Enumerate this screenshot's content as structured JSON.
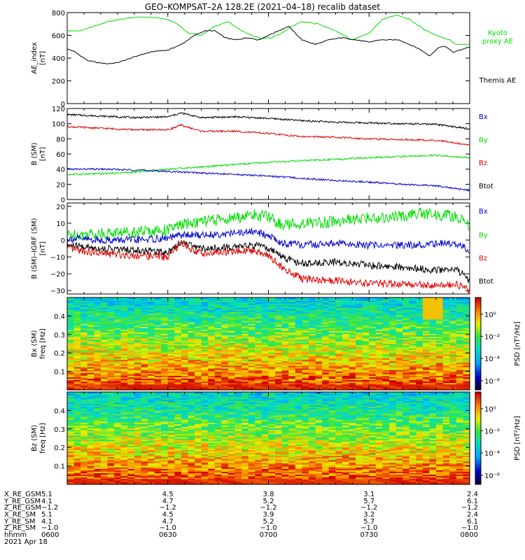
{
  "title": "GEO–KOMPSAT–2A 128.2E (2021–04–18) recalib dataset",
  "colors": {
    "black": "#000000",
    "red": "#dd0000",
    "green": "#00dd00",
    "blue": "#0000cc"
  },
  "chart_data": [
    {
      "type": "line",
      "ylabel": [
        "AE_index",
        "[nT]"
      ],
      "ylim": [
        0,
        800
      ],
      "yticks": [
        "0",
        "200",
        "400",
        "600",
        "800"
      ],
      "x_range": [
        "06:00",
        "08:00"
      ],
      "series": [
        {
          "name": "Kyoto proxy AE",
          "label_lines": [
            "Kyoto",
            "proxy AE"
          ],
          "color": "green",
          "x": [
            0,
            4,
            8,
            12,
            16,
            20,
            26,
            30,
            33,
            36,
            40,
            44,
            48,
            52,
            55,
            58,
            61,
            64,
            67,
            70,
            75,
            80,
            85,
            90,
            94,
            98,
            102,
            106,
            110,
            114,
            116,
            120
          ],
          "values": [
            640,
            640,
            680,
            720,
            740,
            760,
            760,
            740,
            700,
            620,
            600,
            680,
            720,
            640,
            600,
            570,
            580,
            620,
            680,
            720,
            700,
            640,
            560,
            620,
            740,
            780,
            740,
            660,
            600,
            560,
            520,
            520
          ]
        },
        {
          "name": "Themis AE",
          "label_lines": [
            "Themis AE"
          ],
          "color": "black",
          "x": [
            0,
            2,
            4,
            6,
            9,
            12,
            15,
            18,
            22,
            26,
            30,
            34,
            38,
            41,
            44,
            47,
            50,
            54,
            57,
            60,
            63,
            66,
            70,
            74,
            78,
            82,
            86,
            90,
            93,
            96,
            99,
            102,
            105,
            108,
            111,
            113,
            115,
            117,
            120
          ],
          "values": [
            480,
            460,
            420,
            380,
            360,
            350,
            360,
            390,
            430,
            460,
            470,
            520,
            600,
            640,
            640,
            580,
            560,
            580,
            560,
            600,
            640,
            680,
            560,
            520,
            560,
            580,
            560,
            540,
            560,
            560,
            560,
            520,
            480,
            420,
            500,
            500,
            450,
            470,
            500
          ]
        }
      ]
    },
    {
      "type": "line",
      "ylabel": [
        "B (SM)",
        "[nT]"
      ],
      "ylim": [
        0,
        120
      ],
      "yticks": [
        "0",
        "20",
        "40",
        "60",
        "80",
        "100",
        "120"
      ],
      "x_range": [
        "06:00",
        "08:00"
      ],
      "legend": [
        {
          "label": "Bx",
          "color": "blue"
        },
        {
          "label": "By",
          "color": "green"
        },
        {
          "label": "Bz",
          "color": "red"
        },
        {
          "label": "Btot",
          "color": "black"
        }
      ],
      "series": [
        {
          "name": "Btot",
          "color": "black",
          "x": [
            0,
            10,
            20,
            30,
            34,
            40,
            50,
            60,
            70,
            80,
            90,
            100,
            110,
            120
          ],
          "values": [
            112,
            110,
            108,
            109,
            114,
            108,
            109,
            107,
            104,
            102,
            101,
            100,
            99,
            93
          ]
        },
        {
          "name": "Bz",
          "color": "red",
          "x": [
            0,
            10,
            20,
            30,
            34,
            40,
            50,
            60,
            70,
            80,
            90,
            100,
            110,
            120
          ],
          "values": [
            96,
            94,
            92,
            92,
            98,
            90,
            90,
            87,
            83,
            82,
            80,
            79,
            78,
            72
          ]
        },
        {
          "name": "By",
          "color": "green",
          "x": [
            0,
            10,
            20,
            30,
            40,
            50,
            60,
            70,
            80,
            90,
            100,
            110,
            120
          ],
          "values": [
            33,
            34,
            36,
            40,
            43,
            46,
            49,
            51,
            53,
            55,
            57,
            58,
            55
          ]
        },
        {
          "name": "Bx",
          "color": "blue",
          "x": [
            0,
            10,
            20,
            30,
            40,
            50,
            60,
            70,
            80,
            90,
            100,
            110,
            120
          ],
          "values": [
            40,
            40,
            39,
            37,
            35,
            33,
            31,
            28,
            25,
            23,
            20,
            18,
            12
          ]
        }
      ]
    },
    {
      "type": "line",
      "ylabel": [
        "B (SM)–IGRF (SM)",
        "[nT]"
      ],
      "ylim": [
        -32,
        22
      ],
      "yticks": [
        "−30",
        "−20",
        "−10",
        "0",
        "10",
        "20"
      ],
      "x_range": [
        "06:00",
        "08:00"
      ],
      "legend": [
        {
          "label": "Bx",
          "color": "blue"
        },
        {
          "label": "By",
          "color": "green"
        },
        {
          "label": "Bz",
          "color": "red"
        },
        {
          "label": "Btot",
          "color": "black"
        }
      ],
      "series": [
        {
          "name": "By",
          "color": "green",
          "x": [
            0,
            10,
            20,
            30,
            34,
            40,
            50,
            55,
            60,
            64,
            70,
            80,
            90,
            100,
            105,
            110,
            116,
            120
          ],
          "values": [
            3,
            4,
            5,
            6,
            9,
            11,
            13,
            15,
            14,
            9,
            10,
            11,
            13,
            14,
            16,
            15,
            14,
            8
          ]
        },
        {
          "name": "Bx",
          "color": "blue",
          "x": [
            0,
            10,
            20,
            30,
            34,
            40,
            50,
            55,
            60,
            64,
            70,
            80,
            90,
            100,
            110,
            116,
            120
          ],
          "values": [
            1,
            0,
            0,
            1,
            3,
            3,
            4,
            5,
            3,
            -2,
            -3,
            -2,
            -3,
            -3,
            -2,
            -2,
            -6
          ]
        },
        {
          "name": "Btot",
          "color": "black",
          "x": [
            0,
            10,
            20,
            30,
            34,
            40,
            50,
            55,
            60,
            64,
            70,
            80,
            90,
            100,
            110,
            116,
            120
          ],
          "values": [
            -3,
            -5,
            -6,
            -7,
            -1,
            -5,
            -4,
            -3,
            -5,
            -10,
            -14,
            -13,
            -15,
            -16,
            -18,
            -17,
            -24
          ]
        },
        {
          "name": "Bz",
          "color": "red",
          "x": [
            0,
            10,
            20,
            30,
            34,
            40,
            50,
            55,
            60,
            64,
            70,
            80,
            90,
            100,
            110,
            116,
            120
          ],
          "values": [
            -5,
            -8,
            -9,
            -10,
            -2,
            -8,
            -7,
            -6,
            -9,
            -16,
            -23,
            -24,
            -26,
            -26,
            -27,
            -26,
            -30
          ]
        }
      ]
    },
    {
      "type": "heatmap",
      "ylabel": [
        "Bx (SM)",
        "freq [Hz]"
      ],
      "ylim": [
        0,
        0.5
      ],
      "yticks": [
        "0.1",
        "0.2",
        "0.3",
        "0.4"
      ],
      "colorbar": {
        "label": "PSD [nT²/Hz]",
        "ticks": [
          "10⁰",
          "10⁻²",
          "10⁻⁴",
          "10⁻⁶"
        ]
      }
    },
    {
      "type": "heatmap",
      "ylabel": [
        "Bz (SM)",
        "freq [Hz]"
      ],
      "ylim": [
        0,
        0.5
      ],
      "yticks": [
        "0.1",
        "0.2",
        "0.3",
        "0.4"
      ],
      "colorbar": {
        "label": "PSD [nT²/Hz]",
        "ticks": [
          "10⁰",
          "10⁻²",
          "10⁻⁴",
          "10⁻⁶"
        ]
      }
    }
  ],
  "x_axis_table": {
    "row_labels": [
      "X_RE_GSM",
      "Y_RE_GSM",
      "Z_RE_GSM",
      "X_RE_SM",
      "Y_RE_SM",
      "Z_RE_SM",
      "hhmm"
    ],
    "columns": [
      [
        "5.1",
        "4.1",
        "−1.2",
        "5.1",
        "4.1",
        "−1.0",
        "0600"
      ],
      [
        "4.5",
        "4.7",
        "−1.2",
        "4.5",
        "4.7",
        "−1.0",
        "0630"
      ],
      [
        "3.8",
        "5.2",
        "−1.2",
        "3.9",
        "5.2",
        "−1.0",
        "0700"
      ],
      [
        "3.1",
        "5.7",
        "−1.2",
        "3.2",
        "5.7",
        "−1.0",
        "0730"
      ],
      [
        "2.4",
        "6.1",
        "−1.2",
        "2.4",
        "6.1",
        "−1.0",
        "0800"
      ]
    ],
    "date": "2021 Apr 18"
  }
}
